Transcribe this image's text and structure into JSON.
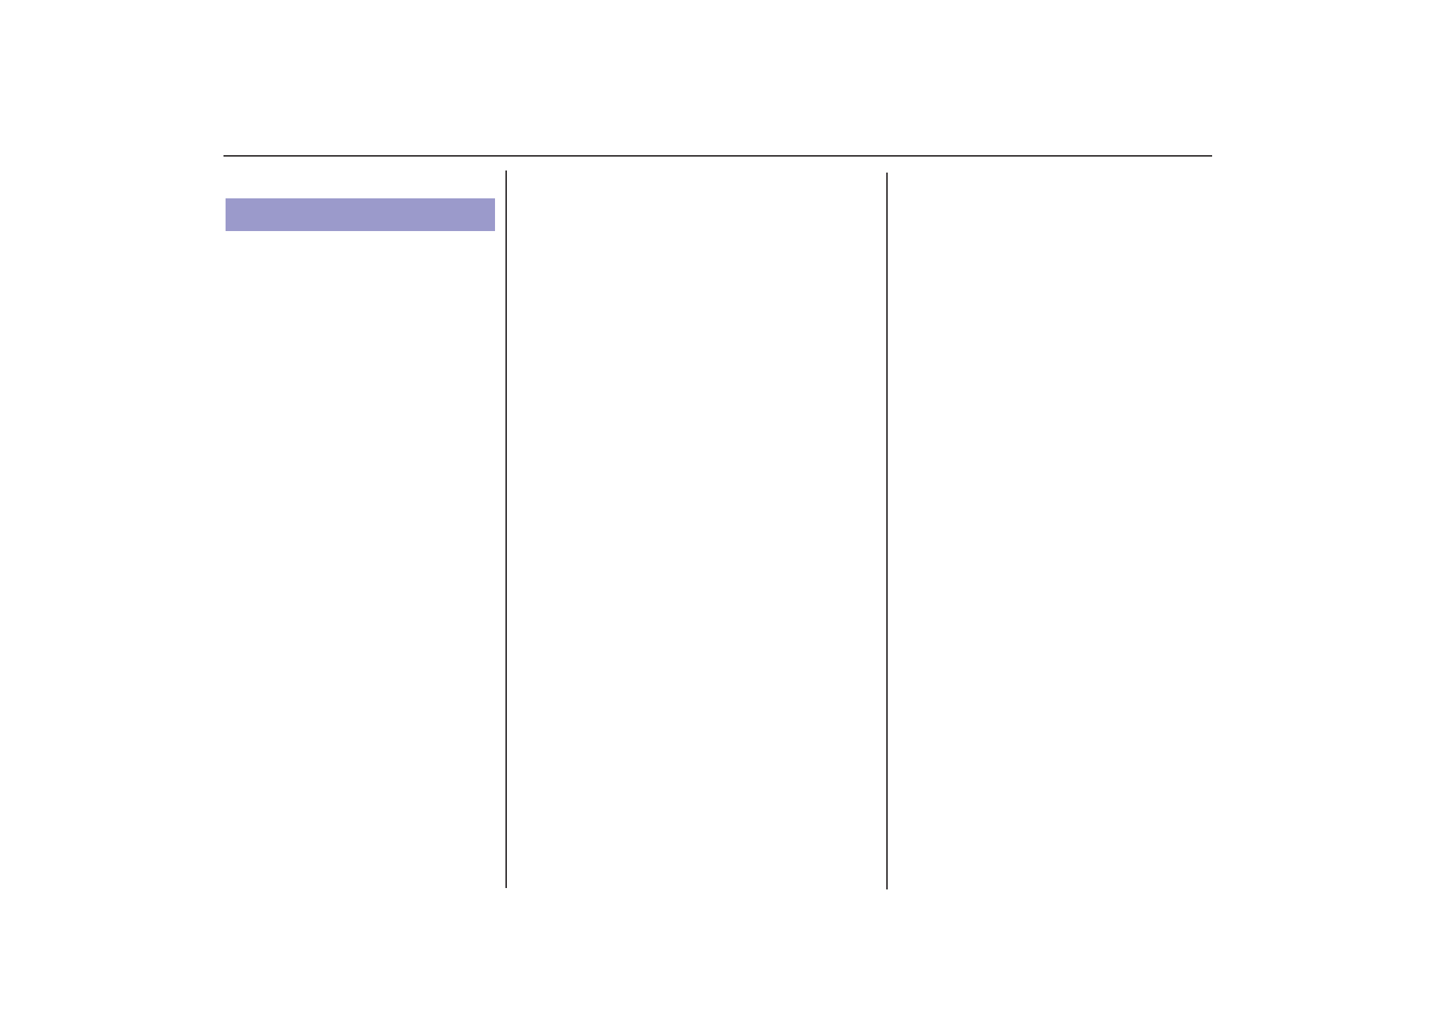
{
  "page": {
    "section_header_color": "#9b9acb",
    "rule_color": "#231f20"
  }
}
